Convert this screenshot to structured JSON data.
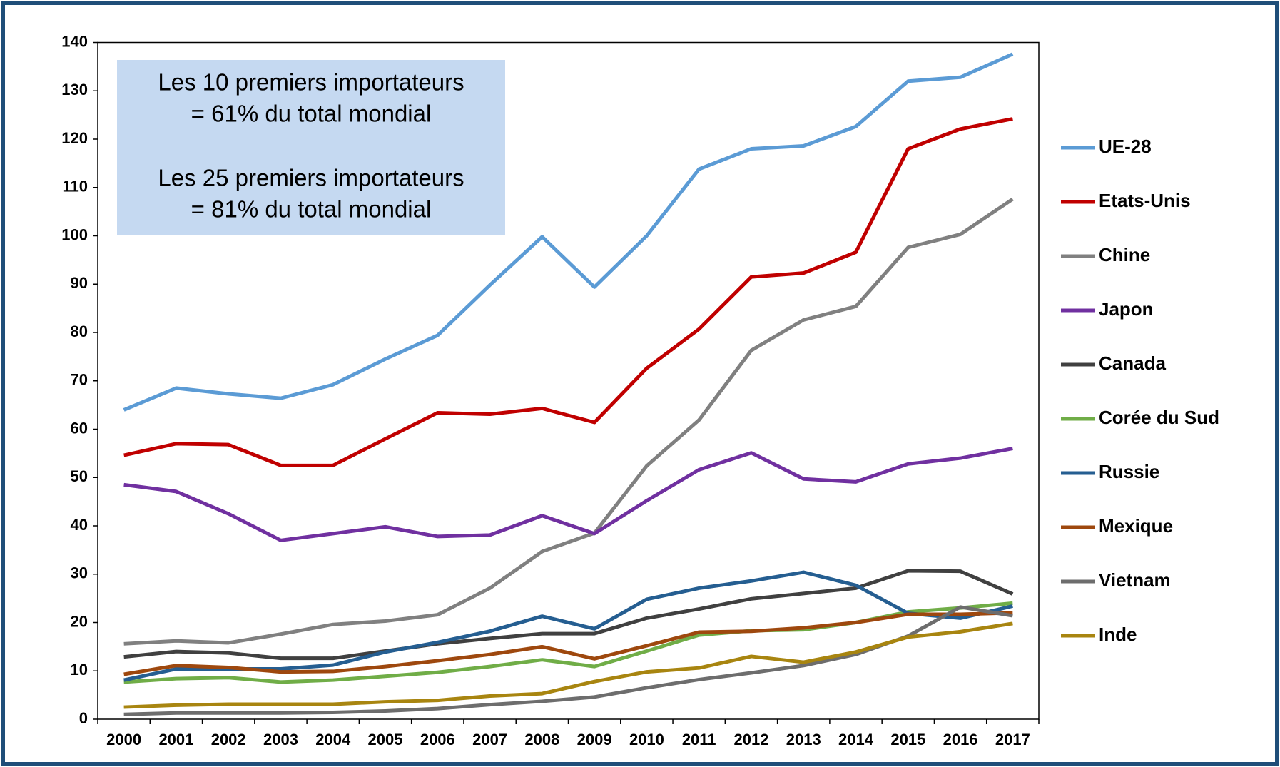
{
  "chart_data": {
    "type": "line",
    "annotations": [
      "Les 10 premiers importateurs",
      "= 61% du total mondial",
      "Les 25 premiers importateurs",
      "= 81% du total mondial"
    ],
    "categories": [
      "2000",
      "2001",
      "2002",
      "2003",
      "2004",
      "2005",
      "2006",
      "2007",
      "2008",
      "2009",
      "2010",
      "2011",
      "2012",
      "2013",
      "2014",
      "2015",
      "2016",
      "2017"
    ],
    "ylim": [
      0,
      140
    ],
    "yticks": [
      0,
      10,
      20,
      30,
      40,
      50,
      60,
      70,
      80,
      90,
      100,
      110,
      120,
      130,
      140
    ],
    "grid": false,
    "legend": "right",
    "series": [
      {
        "name": "UE-28",
        "color": "#5b9bd5",
        "values": [
          64,
          68.5,
          67.3,
          66.4,
          69.2,
          74.5,
          79.4,
          89.8,
          99.8,
          89.4,
          100,
          113.8,
          118,
          118.6,
          122.6,
          132,
          132.8,
          137.6
        ]
      },
      {
        "name": "Etats-Unis",
        "color": "#c00000",
        "values": [
          54.6,
          57,
          56.8,
          52.5,
          52.5,
          58,
          63.4,
          63.1,
          64.3,
          61.4,
          72.6,
          80.7,
          91.5,
          92.3,
          96.6,
          118,
          122.1,
          124.2
        ]
      },
      {
        "name": "Chine",
        "color": "#808080",
        "values": [
          15.6,
          16.2,
          15.8,
          17.6,
          19.6,
          20.3,
          21.6,
          27.1,
          34.7,
          38.5,
          52.4,
          61.9,
          76.3,
          82.6,
          85.4,
          97.6,
          100.3,
          107.6
        ]
      },
      {
        "name": "Japon",
        "color": "#7030a0",
        "values": [
          48.5,
          47.1,
          42.5,
          37,
          38.4,
          39.8,
          37.8,
          38.1,
          42.1,
          38.4,
          45.2,
          51.6,
          55.1,
          49.7,
          49.1,
          52.8,
          54,
          56
        ]
      },
      {
        "name": "Canada",
        "color": "#404040",
        "values": [
          12.9,
          14,
          13.7,
          12.6,
          12.6,
          14.1,
          15.6,
          16.7,
          17.7,
          17.7,
          20.9,
          22.8,
          24.9,
          26,
          27.1,
          30.7,
          30.6,
          25.9
        ]
      },
      {
        "name": "Corée du Sud",
        "color": "#70ad47",
        "values": [
          7.7,
          8.4,
          8.6,
          7.7,
          8.1,
          8.9,
          9.7,
          10.9,
          12.3,
          10.9,
          14.1,
          17.4,
          18.3,
          18.5,
          20,
          22.2,
          23,
          24
        ]
      },
      {
        "name": "Russie",
        "color": "#255e91",
        "values": [
          8.1,
          10.4,
          10.4,
          10.4,
          11.2,
          13.9,
          15.9,
          18.2,
          21.3,
          18.7,
          24.8,
          27.1,
          28.6,
          30.4,
          27.7,
          21.9,
          20.9,
          23.4
        ]
      },
      {
        "name": "Mexique",
        "color": "#9e480e",
        "values": [
          9.3,
          11.1,
          10.7,
          9.8,
          9.9,
          10.9,
          12.1,
          13.4,
          15,
          12.5,
          15.2,
          18,
          18.2,
          18.9,
          20,
          21.7,
          21.7,
          22
        ]
      },
      {
        "name": "Vietnam",
        "color": "#6d6d6d",
        "values": [
          1,
          1.3,
          1.3,
          1.3,
          1.4,
          1.7,
          2.2,
          3,
          3.7,
          4.6,
          6.5,
          8.2,
          9.6,
          11.1,
          13.4,
          17.2,
          23.2,
          21.4
        ]
      },
      {
        "name": "Inde",
        "color": "#a88510",
        "values": [
          2.5,
          2.9,
          3.1,
          3.1,
          3.1,
          3.6,
          3.9,
          4.8,
          5.3,
          7.8,
          9.8,
          10.6,
          13,
          11.8,
          13.9,
          17,
          18.1,
          19.8
        ]
      }
    ]
  }
}
